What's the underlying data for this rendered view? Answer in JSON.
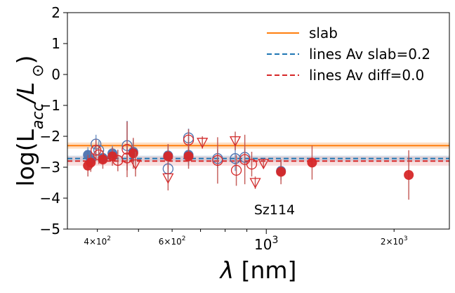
{
  "chart_data": {
    "type": "scatter",
    "x_scale": "log",
    "xlim": [
      340,
      2700
    ],
    "ylim": [
      -5,
      2
    ],
    "xlabel": "λ [nm]",
    "ylabel": "log(L_acc/L_⊙)",
    "annotation": "Sz114",
    "y_ticks": [
      "2",
      "1",
      "0",
      "−1",
      "−2",
      "−3",
      "−4",
      "−5"
    ],
    "y_tick_values": [
      2,
      1,
      0,
      -1,
      -2,
      -3,
      -4,
      -5
    ],
    "x_ticks": [
      {
        "value": 400,
        "base": "4×10",
        "exp": "2"
      },
      {
        "value": 600,
        "base": "6×10",
        "exp": "2"
      },
      {
        "value": 1000,
        "base": "10",
        "exp": "3"
      },
      {
        "value": 2000,
        "base": "2×10",
        "exp": "3"
      }
    ],
    "legend": {
      "position": "top-right",
      "entries": [
        {
          "label": "slab",
          "color": "#ff7f0e",
          "style": "solid"
        },
        {
          "label": "lines Av slab=0.2",
          "color": "#1f77b4",
          "style": "dashed"
        },
        {
          "label": "lines Av diff=0.0",
          "color": "#d62728",
          "style": "dashed"
        }
      ]
    },
    "reference_lines": {
      "slab": {
        "value": -2.3,
        "band": [
          -2.2,
          -2.4
        ],
        "color": "#ff7f0e"
      },
      "lines_av_slab": {
        "value": -2.72,
        "band": [
          -2.62,
          -2.82
        ],
        "color": "#1f77b4"
      },
      "lines_av_diff": {
        "value": -2.8,
        "band": [
          -2.65,
          -2.95
        ],
        "color": "#d62728"
      }
    },
    "series": [
      {
        "name": "lines Av slab=0.2",
        "color": "#4c72b0",
        "points": [
          {
            "x": 380,
            "y": -2.6,
            "err": 0.25,
            "marker": "filled-circle"
          },
          {
            "x": 386,
            "y": -2.75,
            "err": 0.2,
            "marker": "filled-circle"
          },
          {
            "x": 397,
            "y": -2.25,
            "err": 0.3,
            "marker": "open-circle"
          },
          {
            "x": 403,
            "y": -2.45,
            "err": 0.3,
            "marker": "open-circle"
          },
          {
            "x": 412,
            "y": -2.7,
            "err": 0.2,
            "marker": "filled-circle"
          },
          {
            "x": 434,
            "y": -2.55,
            "err": 0.25,
            "marker": "filled-circle"
          },
          {
            "x": 470,
            "y": -2.3,
            "err": 0.8,
            "marker": "open-circle"
          },
          {
            "x": 486,
            "y": -2.5,
            "err": 0.4,
            "marker": "filled-circle"
          },
          {
            "x": 587,
            "y": -2.62,
            "err": 0.35,
            "marker": "filled-circle"
          },
          {
            "x": 587,
            "y": -3.05,
            "err": 0.4,
            "marker": "open-circle"
          },
          {
            "x": 656,
            "y": -2.05,
            "err": 0.3,
            "marker": "open-circle"
          },
          {
            "x": 656,
            "y": -2.6,
            "err": 0.35,
            "marker": "filled-circle"
          },
          {
            "x": 768,
            "y": -2.72,
            "err": 0.3,
            "marker": "open-circle"
          },
          {
            "x": 845,
            "y": -2.72,
            "err": 0.4,
            "marker": "open-circle"
          },
          {
            "x": 890,
            "y": -2.68,
            "err": 0.3,
            "marker": "open-circle"
          },
          {
            "x": 1083,
            "y": -3.12,
            "err": 0.3,
            "marker": "filled-circle"
          }
        ]
      },
      {
        "name": "lines Av diff=0.0",
        "color": "#d62728",
        "points": [
          {
            "x": 380,
            "y": -2.95,
            "err": 0.35,
            "marker": "filled-circle"
          },
          {
            "x": 386,
            "y": -2.85,
            "err": 0.3,
            "marker": "filled-circle"
          },
          {
            "x": 397,
            "y": -2.45,
            "err": 0.35,
            "marker": "open-circle"
          },
          {
            "x": 403,
            "y": -2.6,
            "err": 0.3,
            "marker": "open-circle"
          },
          {
            "x": 412,
            "y": -2.75,
            "err": 0.3,
            "marker": "filled-circle"
          },
          {
            "x": 434,
            "y": -2.65,
            "err": 0.3,
            "marker": "filled-circle"
          },
          {
            "x": 447,
            "y": -2.78,
            "err": 0.35,
            "marker": "open-circle"
          },
          {
            "x": 470,
            "y": -2.42,
            "err": 0.9,
            "marker": "open-circle"
          },
          {
            "x": 470,
            "y": -2.7,
            "err": 0.4,
            "marker": "open-circle"
          },
          {
            "x": 486,
            "y": -2.55,
            "err": 0.5,
            "marker": "filled-circle"
          },
          {
            "x": 492,
            "y": -2.9,
            "err": 0.4,
            "marker": "open-triangle"
          },
          {
            "x": 587,
            "y": -2.65,
            "err": 0.4,
            "marker": "filled-circle"
          },
          {
            "x": 587,
            "y": -3.35,
            "err": 0.4,
            "marker": "open-triangle"
          },
          {
            "x": 656,
            "y": -2.12,
            "err": 0.35,
            "marker": "open-circle"
          },
          {
            "x": 656,
            "y": -2.65,
            "err": 0.4,
            "marker": "filled-circle"
          },
          {
            "x": 707,
            "y": -2.2,
            "err": 0.2,
            "marker": "open-triangle"
          },
          {
            "x": 768,
            "y": -2.78,
            "err": 0.75,
            "marker": "open-circle"
          },
          {
            "x": 845,
            "y": -2.15,
            "err": 0.3,
            "marker": "open-triangle"
          },
          {
            "x": 850,
            "y": -3.1,
            "err": 0.5,
            "marker": "open-circle"
          },
          {
            "x": 890,
            "y": -2.75,
            "err": 0.8,
            "marker": "open-circle"
          },
          {
            "x": 924,
            "y": -2.9,
            "err": 0.4,
            "marker": "open-circle"
          },
          {
            "x": 942,
            "y": -3.5,
            "err": 0.2,
            "marker": "open-triangle"
          },
          {
            "x": 985,
            "y": -2.88,
            "err": 0.15,
            "marker": "open-triangle"
          },
          {
            "x": 1083,
            "y": -3.15,
            "err": 0.4,
            "marker": "filled-circle"
          },
          {
            "x": 1282,
            "y": -2.85,
            "err": 0.55,
            "marker": "filled-circle"
          },
          {
            "x": 2166,
            "y": -3.25,
            "err": 0.8,
            "marker": "filled-circle"
          }
        ]
      }
    ]
  }
}
